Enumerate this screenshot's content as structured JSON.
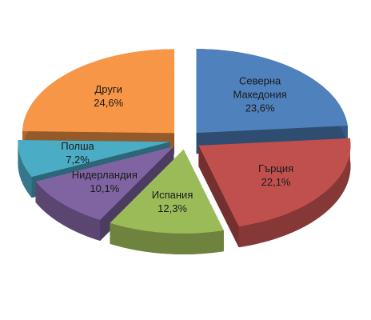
{
  "chart_data": {
    "type": "pie",
    "categories": [
      "Северна Македония",
      "Гърция",
      "Испания",
      "Нидерландия",
      "Полша",
      "Други"
    ],
    "values": [
      23.6,
      22.1,
      12.3,
      10.1,
      7.2,
      24.6
    ],
    "value_labels": [
      "23,6%",
      "22,1%",
      "12,3%",
      "10,1%",
      "7,2%",
      "24,6%"
    ],
    "colors": [
      "#4f81bd",
      "#c0504d",
      "#9bbb59",
      "#8064a2",
      "#4bacc6",
      "#f79646"
    ]
  }
}
